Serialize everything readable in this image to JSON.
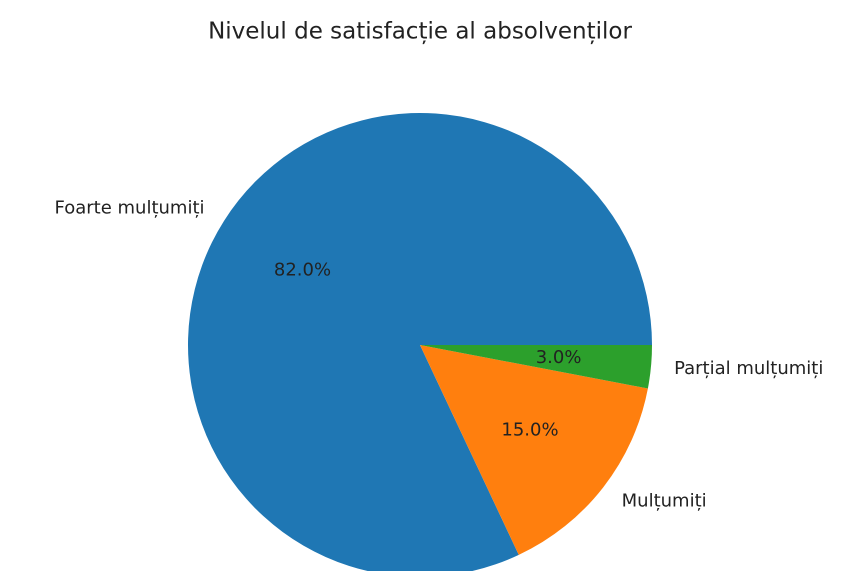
{
  "chart_data": {
    "type": "pie",
    "title": "Nivelul de satisfacție al absolvenților",
    "categories": [
      "Foarte mulțumiți",
      "Mulțumiți",
      "Parțial mulțumiți"
    ],
    "values": [
      82,
      15,
      3
    ],
    "value_labels": [
      "82.0%",
      "15.0%",
      "3.0%"
    ],
    "colors": [
      "#1f77b4",
      "#ff7f0e",
      "#2ca02c"
    ]
  }
}
